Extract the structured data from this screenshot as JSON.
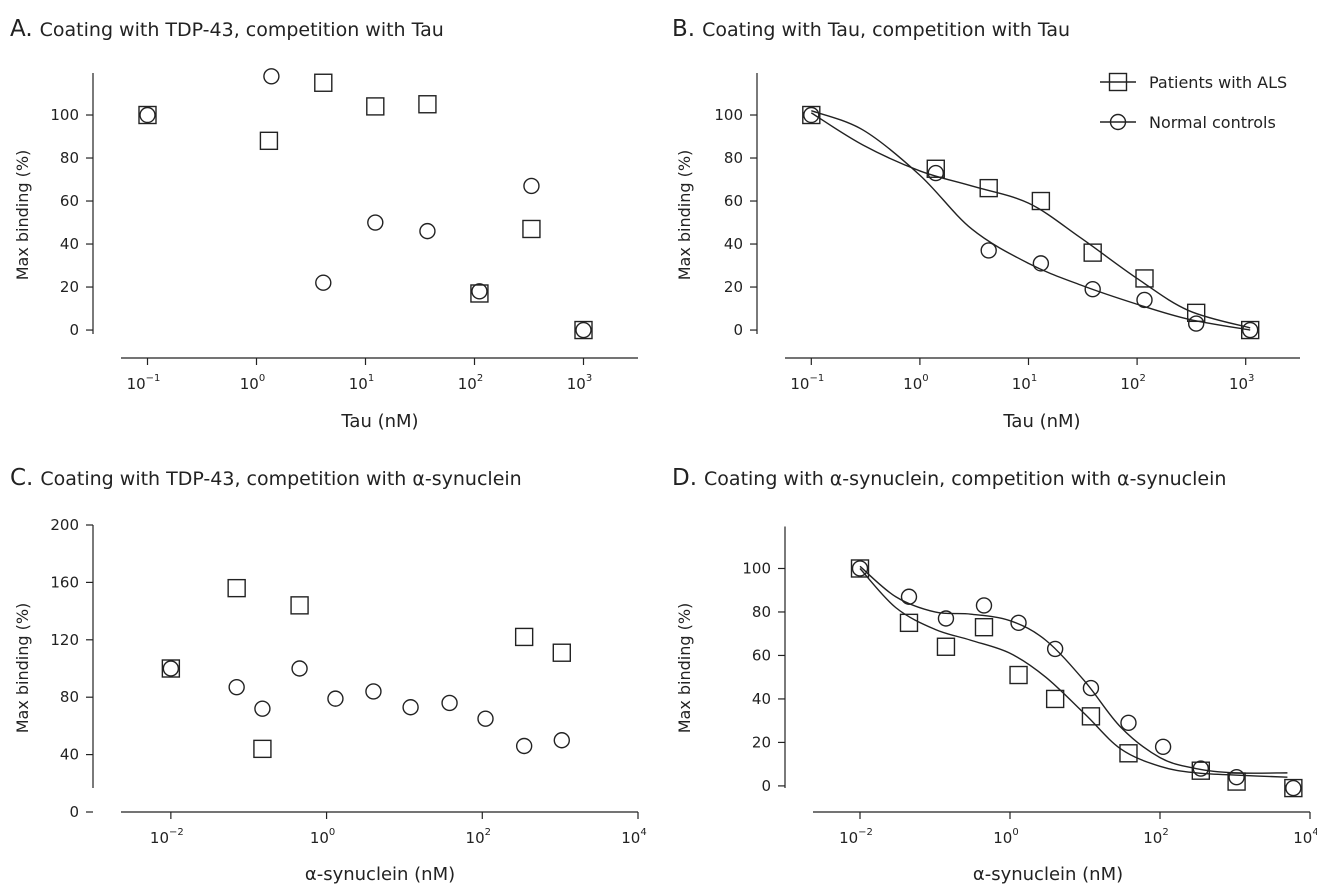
{
  "chart_data": [
    {
      "id": "A",
      "letter": "A.",
      "type": "scatter",
      "title": "Coating with TDP-43, competition with Tau",
      "xlabel": "Tau (nM)",
      "ylabel": "Max binding (%)",
      "xscale": "log10",
      "xlim_log": [
        -1.5,
        3.5
      ],
      "ylim": [
        -13,
        120
      ],
      "yticks": [
        0,
        20,
        40,
        60,
        80,
        100
      ],
      "xticks": [
        {
          "exp": -1,
          "mant": "10",
          "sup": "−1"
        },
        {
          "exp": 0,
          "mant": "10",
          "sup": "0"
        },
        {
          "exp": 1,
          "mant": "10",
          "sup": "1"
        },
        {
          "exp": 2,
          "mant": "10",
          "sup": "2"
        },
        {
          "exp": 3,
          "mant": "10",
          "sup": "3"
        }
      ],
      "series": [
        {
          "marker": "square",
          "x": [
            0.1,
            1.3,
            4.1,
            12.3,
            37,
            111,
            333,
            1000
          ],
          "y": [
            100,
            88,
            115,
            104,
            105,
            17,
            47,
            0
          ]
        },
        {
          "marker": "circle",
          "x": [
            0.1,
            1.37,
            4.1,
            12.3,
            37,
            111,
            333,
            1000
          ],
          "y": [
            100,
            118,
            22,
            50,
            46,
            18,
            67,
            0
          ]
        }
      ]
    },
    {
      "id": "B",
      "letter": "B.",
      "type": "scatter",
      "title": "Coating with Tau, competition with Tau",
      "xlabel": "Tau (nM)",
      "ylabel": "Max binding (%)",
      "xscale": "log10",
      "xlim_log": [
        -1.5,
        3.5
      ],
      "ylim": [
        -13,
        120
      ],
      "yticks": [
        0,
        20,
        40,
        60,
        80,
        100
      ],
      "xticks": [
        {
          "exp": -1,
          "mant": "10",
          "sup": "−1"
        },
        {
          "exp": 0,
          "mant": "10",
          "sup": "0"
        },
        {
          "exp": 1,
          "mant": "10",
          "sup": "1"
        },
        {
          "exp": 2,
          "mant": "10",
          "sup": "2"
        },
        {
          "exp": 3,
          "mant": "10",
          "sup": "3"
        }
      ],
      "legend": {
        "position": "top-right"
      },
      "series": [
        {
          "name": "Patients with ALS",
          "marker": "square",
          "x": [
            0.1,
            1.4,
            4.3,
            13,
            39,
            117,
            350,
            1100
          ],
          "y": [
            100,
            75,
            66,
            60,
            36,
            24,
            8,
            0
          ],
          "fit_x": [
            0.1,
            0.3,
            1,
            3,
            10,
            30,
            100,
            300,
            1100
          ],
          "fit_y": [
            101,
            86,
            74,
            67,
            59,
            43,
            24,
            9,
            1
          ]
        },
        {
          "name": "Normal controls",
          "marker": "circle",
          "x": [
            0.1,
            1.4,
            4.3,
            13,
            39,
            117,
            350,
            1100
          ],
          "y": [
            100,
            73,
            37,
            31,
            19,
            14,
            3,
            0
          ],
          "fit_x": [
            0.1,
            0.3,
            1,
            3,
            10,
            30,
            100,
            300,
            1100
          ],
          "fit_y": [
            102,
            93,
            72,
            47,
            31,
            21,
            12,
            5,
            0
          ]
        }
      ]
    },
    {
      "id": "C",
      "letter": "C.",
      "type": "scatter",
      "title": "Coating with TDP-43, competition with α-synuclein",
      "xlabel": "α-synuclein (nM)",
      "ylabel": "Max binding (%)",
      "xscale": "log10",
      "xlim_log": [
        -3,
        4
      ],
      "ylim": [
        0,
        200
      ],
      "yticks": [
        0,
        40,
        80,
        120,
        160,
        200
      ],
      "xticks": [
        {
          "exp": -2,
          "mant": "10",
          "sup": "−2"
        },
        {
          "exp": 0,
          "mant": "10",
          "sup": "0"
        },
        {
          "exp": 2,
          "mant": "10",
          "sup": "2"
        },
        {
          "exp": 4,
          "mant": "10",
          "sup": "4"
        }
      ],
      "series": [
        {
          "marker": "square",
          "x": [
            0.01,
            0.07,
            0.15,
            0.45,
            345,
            1050
          ],
          "y": [
            100,
            156,
            44,
            144,
            122,
            111
          ]
        },
        {
          "marker": "circle",
          "x": [
            0.01,
            0.07,
            0.15,
            0.45,
            1.3,
            4,
            12,
            38,
            110,
            345,
            1050
          ],
          "y": [
            100,
            87,
            72,
            100,
            79,
            84,
            73,
            76,
            65,
            46,
            50
          ]
        }
      ]
    },
    {
      "id": "D",
      "letter": "D.",
      "type": "scatter",
      "title": "Coating with α-synuclein, competition with α-synuclein",
      "xlabel": "α-synuclein (nM)",
      "ylabel": "Max binding (%)",
      "xscale": "log10",
      "xlim_log": [
        -3,
        4
      ],
      "ylim": [
        -12,
        120
      ],
      "yticks": [
        0,
        20,
        40,
        60,
        80,
        100
      ],
      "xticks": [
        {
          "exp": -2,
          "mant": "10",
          "sup": "−2"
        },
        {
          "exp": 0,
          "mant": "10",
          "sup": "0"
        },
        {
          "exp": 2,
          "mant": "10",
          "sup": "2"
        },
        {
          "exp": 4,
          "mant": "10",
          "sup": "4"
        }
      ],
      "series": [
        {
          "marker": "square",
          "x": [
            0.01,
            0.045,
            0.14,
            0.45,
            1.3,
            4,
            12,
            38,
            350,
            1050,
            6000
          ],
          "y": [
            100,
            75,
            64,
            73,
            51,
            40,
            32,
            15,
            7,
            2,
            -1
          ],
          "fit_x": [
            0.01,
            0.03,
            0.1,
            0.3,
            1,
            3,
            10,
            30,
            100,
            300,
            1000,
            5000
          ],
          "fit_y": [
            100,
            82,
            72,
            67,
            61,
            50,
            33,
            17,
            9,
            6,
            5,
            4
          ]
        },
        {
          "marker": "circle",
          "x": [
            0.01,
            0.045,
            0.14,
            0.45,
            1.3,
            4,
            12,
            38,
            110,
            350,
            1050,
            6000
          ],
          "y": [
            100,
            87,
            77,
            83,
            75,
            63,
            45,
            29,
            18,
            8,
            4,
            -1
          ],
          "fit_x": [
            0.01,
            0.03,
            0.1,
            0.3,
            1,
            3,
            10,
            30,
            100,
            300,
            1000,
            5000
          ],
          "fit_y": [
            101,
            87,
            80,
            79,
            76,
            67,
            48,
            27,
            13,
            8,
            6,
            6
          ]
        }
      ]
    }
  ]
}
